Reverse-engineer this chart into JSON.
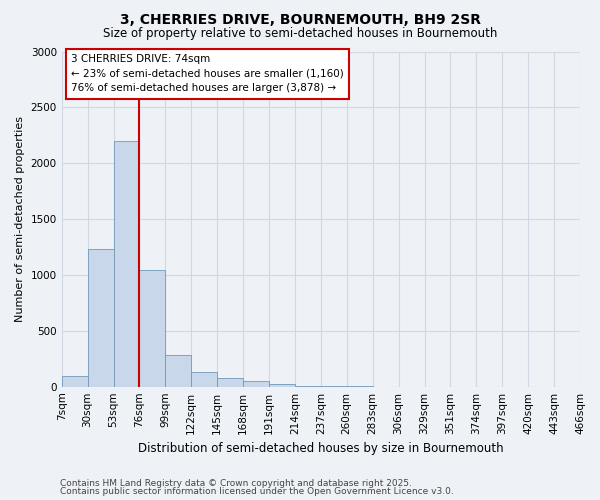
{
  "title": "3, CHERRIES DRIVE, BOURNEMOUTH, BH9 2SR",
  "subtitle": "Size of property relative to semi-detached houses in Bournemouth",
  "xlabel": "Distribution of semi-detached houses by size in Bournemouth",
  "ylabel": "Number of semi-detached properties",
  "footer1": "Contains HM Land Registry data © Crown copyright and database right 2025.",
  "footer2": "Contains public sector information licensed under the Open Government Licence v3.0.",
  "bins": [
    "7sqm",
    "30sqm",
    "53sqm",
    "76sqm",
    "99sqm",
    "122sqm",
    "145sqm",
    "168sqm",
    "191sqm",
    "214sqm",
    "237sqm",
    "260sqm",
    "283sqm",
    "306sqm",
    "329sqm",
    "351sqm",
    "374sqm",
    "397sqm",
    "420sqm",
    "443sqm",
    "466sqm"
  ],
  "values": [
    100,
    1230,
    2195,
    1040,
    280,
    135,
    80,
    50,
    20,
    10,
    5,
    2,
    0,
    0,
    0,
    0,
    0,
    0,
    0,
    0
  ],
  "bar_color": "#c8d8ea",
  "bar_edge_color": "#7098b8",
  "vline_color": "#cc0000",
  "vline_x": 3,
  "annotation_text": "3 CHERRIES DRIVE: 74sqm\n← 23% of semi-detached houses are smaller (1,160)\n76% of semi-detached houses are larger (3,878) →",
  "annotation_box_color": "#ffffff",
  "annotation_box_edge": "#cc0000",
  "ylim": [
    0,
    3000
  ],
  "yticks": [
    0,
    500,
    1000,
    1500,
    2000,
    2500,
    3000
  ],
  "background_color": "#eef2f7",
  "grid_color": "#d0d8e4",
  "title_fontsize": 10,
  "subtitle_fontsize": 8.5,
  "ylabel_fontsize": 8,
  "xlabel_fontsize": 8.5,
  "tick_fontsize": 7.5,
  "footer_fontsize": 6.5
}
